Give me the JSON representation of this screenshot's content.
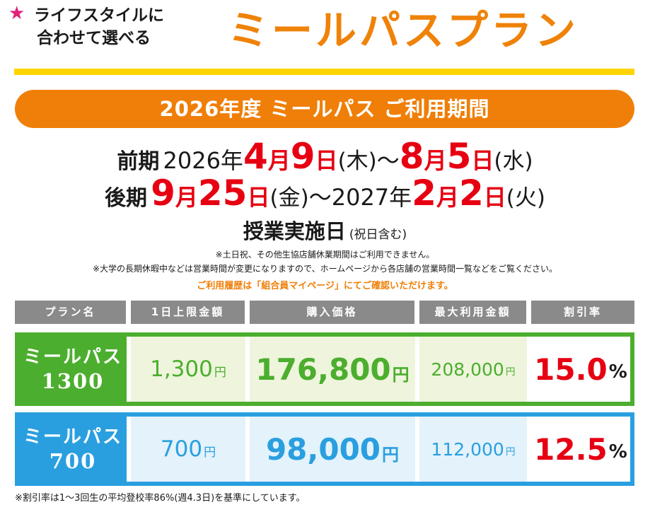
{
  "header": {
    "star": "★",
    "tagline_line1": "ライフスタイルに",
    "tagline_line2": "合わせて選べる",
    "title": "ミールパスプラン",
    "colors": {
      "title": "#ef8208",
      "rule": "#ffd400",
      "star": "#e1217a"
    }
  },
  "banner": {
    "text": "2026年度 ミールパス ご利用期間",
    "color": "#ef7f08"
  },
  "first_term": {
    "label": "前期",
    "year": "2026年",
    "start_month": "4",
    "start_day": "9",
    "start_dow": "(木)",
    "sep": "〜",
    "end_month": "8",
    "end_day": "5",
    "end_dow": "(水)"
  },
  "second_term": {
    "label": "後期",
    "start_month": "9",
    "start_day": "25",
    "start_dow": "(金)",
    "sep": "〜",
    "end_year": "2027年",
    "end_month": "2",
    "end_day": "2",
    "end_dow": "(火)"
  },
  "units": {
    "month": "月",
    "day": "日",
    "yen": "円",
    "percent": "%"
  },
  "execution_days": {
    "main": "授業実施日",
    "sub": "(祝日含む)"
  },
  "notes": {
    "n1": "※土日祝、その他生協店舗休業期間はご利用できません。",
    "n2": "※大学の長期休暇中などは営業時間が変更になりますので、ホームページから各店舗の営業時間一覧などをご覧ください。",
    "n3": "ご利用履歴は「組合員マイページ」にてご確認いただけます。"
  },
  "table": {
    "headers": [
      "プラン名",
      "1日上限金額",
      "購入価格",
      "最大利用金額",
      "割引率"
    ],
    "rows": [
      {
        "name_top": "ミールパス",
        "name_num": "1300",
        "daily_limit": "1,300",
        "purchase_price": "176,800",
        "max_use": "208,000",
        "discount": "15.0",
        "color": "#4cae2e"
      },
      {
        "name_top": "ミールパス",
        "name_num": "700",
        "daily_limit": "700",
        "purchase_price": "98,000",
        "max_use": "112,000",
        "discount": "12.5",
        "color": "#2a9fdf"
      }
    ]
  },
  "footnote": "※割引率は1〜3回生の平均登校率86%(週4.3日)を基準にしています。"
}
